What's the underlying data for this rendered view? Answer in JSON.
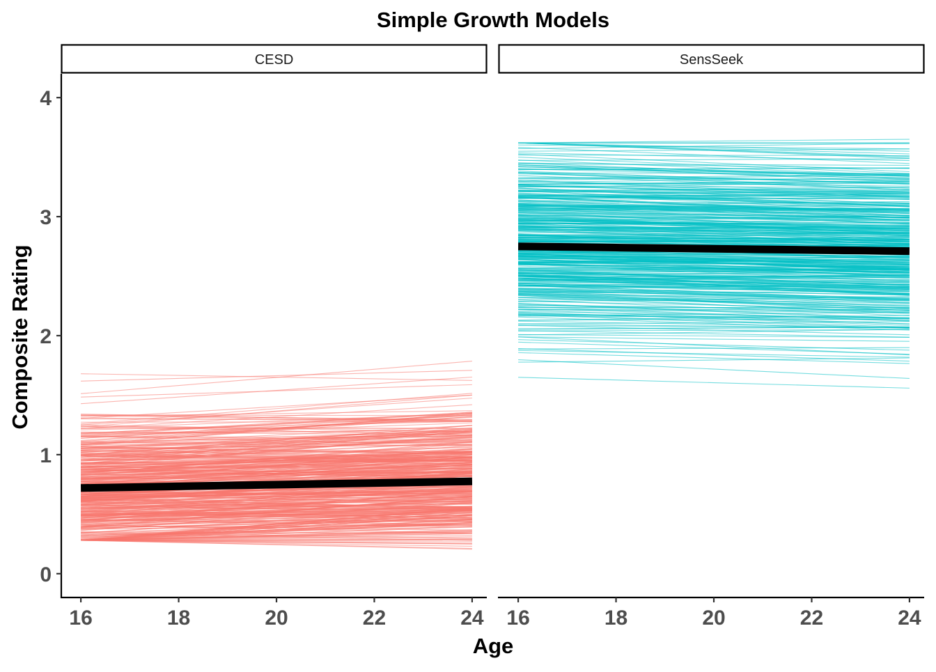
{
  "chart_data": {
    "type": "line",
    "title": "Simple Growth Models",
    "xlabel": "Age",
    "ylabel": "Composite Rating",
    "xlim": [
      15.6,
      24.3
    ],
    "ylim": [
      -0.2,
      4.2
    ],
    "x_ticks": [
      16,
      18,
      20,
      22,
      24
    ],
    "y_ticks": [
      0,
      1,
      2,
      3,
      4
    ],
    "grid": false,
    "legend": "none",
    "panels": [
      {
        "label": "CESD",
        "color": "#F8766D",
        "individual_lines": {
          "count": 450,
          "x": [
            16,
            24
          ],
          "intercept_range_at_16": [
            0.28,
            1.68
          ],
          "intercept_mean_at_16": 0.72,
          "intercept_sd_at_16": 0.3,
          "slope_range_per_year": [
            -0.01,
            0.035
          ]
        },
        "fixed_effect": {
          "x": [
            16,
            17,
            18,
            19,
            20,
            21,
            22,
            23,
            24
          ],
          "y": [
            0.72,
            0.727,
            0.734,
            0.741,
            0.748,
            0.755,
            0.762,
            0.769,
            0.776
          ]
        }
      },
      {
        "label": "SensSeek",
        "color": "#00BFC4",
        "individual_lines": {
          "count": 450,
          "x": [
            16,
            24
          ],
          "intercept_range_at_16": [
            1.65,
            3.62
          ],
          "intercept_mean_at_16": 2.75,
          "intercept_sd_at_16": 0.42,
          "slope_range_per_year": [
            -0.02,
            0.006
          ]
        },
        "fixed_effect": {
          "x": [
            16,
            17,
            18,
            19,
            20,
            21,
            22,
            23,
            24
          ],
          "y": [
            2.75,
            2.745,
            2.74,
            2.735,
            2.73,
            2.725,
            2.72,
            2.715,
            2.71
          ]
        }
      }
    ]
  }
}
